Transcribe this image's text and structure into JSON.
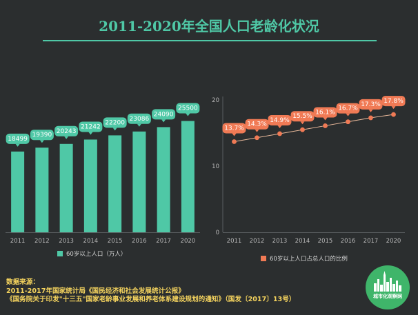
{
  "title": "2011-2020年全国人口老龄化状况",
  "colors": {
    "background": "#2b2e2f",
    "accent": "#4fc8a6",
    "bar": "#4fc8a6",
    "line": "#f07a55",
    "source_text": "#f4d35e",
    "logo": "#3fb56a"
  },
  "chart_data": [
    {
      "type": "bar",
      "categories": [
        "2011",
        "2012",
        "2013",
        "2014",
        "2015",
        "2016",
        "2017",
        "2020"
      ],
      "series": [
        {
          "name": "60岁以上人口（万人）",
          "values": [
            18499,
            19390,
            20243,
            21242,
            22200,
            23086,
            24090,
            25500
          ]
        }
      ],
      "data_labels": [
        "18499",
        "19390",
        "20243",
        "21242",
        "22200",
        "23086",
        "24090",
        "25500"
      ],
      "ylim": [
        0,
        30000
      ],
      "grid": false,
      "legend": "bottom"
    },
    {
      "type": "line",
      "categories": [
        "2011",
        "2012",
        "2013",
        "2014",
        "2015",
        "2016",
        "2017",
        "2020"
      ],
      "series": [
        {
          "name": "60岁以上人口占总人口的比例",
          "values": [
            13.7,
            14.3,
            14.9,
            15.5,
            16.1,
            16.7,
            17.3,
            17.8
          ]
        }
      ],
      "data_labels": [
        "13.7%",
        "14.3%",
        "14.9%",
        "15.5%",
        "16.1%",
        "16.7%",
        "17.3%",
        "17.8%"
      ],
      "yticks": [
        "0",
        "10",
        "20"
      ],
      "ylim": [
        0,
        20
      ],
      "grid": false,
      "legend": "bottom"
    }
  ],
  "source": {
    "label": "数据来源：",
    "line1": "2011-2017年国家统计局《国民经济和社会发展统计公报》",
    "line2": "《国务院关于印发\"十三五\"国家老龄事业发展和养老体系建设规划的通知》（国发〔2017〕13号）"
  },
  "logo_text": "城市化观察网"
}
